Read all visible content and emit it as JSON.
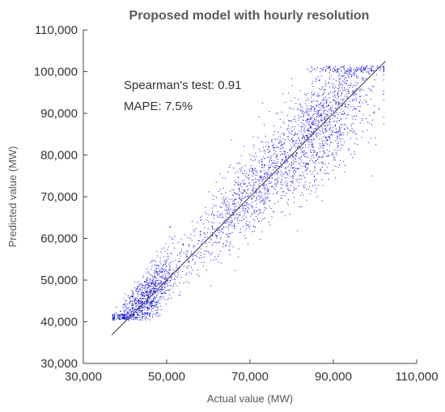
{
  "chart_data": {
    "type": "scatter",
    "title": "Proposed model with hourly resolution",
    "xlabel": "Actual value (MW)",
    "ylabel": "Predicted value (MW)",
    "xlim": [
      30000,
      110000
    ],
    "ylim": [
      30000,
      110000
    ],
    "x_ticks": [
      "30,000",
      "50,000",
      "70,000",
      "90,000",
      "110,000"
    ],
    "y_ticks": [
      "30,000",
      "40,000",
      "50,000",
      "60,000",
      "70,000",
      "80,000",
      "90,000",
      "100,000",
      "110,000"
    ],
    "grid": false,
    "legend": "none",
    "annotations": [
      "Spearman's test: 0.91",
      "MAPE: 7.5%"
    ],
    "marker_color": "#0000ee",
    "reference_line": {
      "x": [
        36800,
        102500
      ],
      "y": [
        36800,
        102500
      ],
      "color": "#555555"
    },
    "point_distribution": {
      "approx_count": 17000,
      "spearman": 0.91,
      "mape_percent": 7.5,
      "dense_clusters": [
        {
          "x": 45000,
          "y": 45500
        },
        {
          "x": 70000,
          "y": 70000
        },
        {
          "x": 88000,
          "y": 89000
        }
      ],
      "x_range": [
        37000,
        102000
      ],
      "y_range": [
        40500,
        101500
      ]
    }
  }
}
